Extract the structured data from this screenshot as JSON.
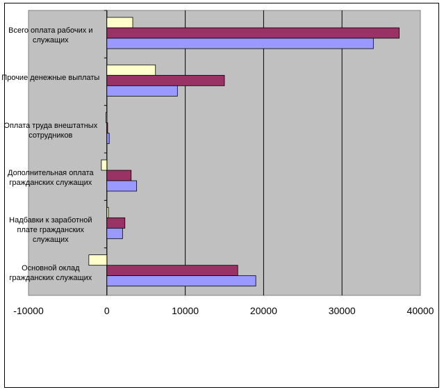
{
  "chart_data": {
    "type": "bar",
    "orientation": "horizontal",
    "categories": [
      "Всего оплата рабочих и служащих",
      "Прочие денежные выплаты",
      "Оплата труда внештатных сотрудников",
      "Дополнительная оплата гражданских служащих",
      "Надбавки к заработной плате гражданских служащих",
      "Основной оклад гражданских служащих"
    ],
    "series": [
      {
        "color": "#FFFFCC",
        "values": [
          3300,
          6200,
          -100,
          -700,
          200,
          -2300
        ]
      },
      {
        "color": "#993366",
        "values": [
          37300,
          15000,
          100,
          3100,
          2300,
          16700
        ]
      },
      {
        "color": "#9999FF",
        "values": [
          34000,
          9000,
          300,
          3800,
          2000,
          19000
        ]
      }
    ],
    "title": "",
    "xlabel": "",
    "ylabel": "",
    "xlim": [
      -10000,
      40000
    ],
    "x_ticks": [
      "-10000",
      "0",
      "10000",
      "20000",
      "30000",
      "40000"
    ],
    "grid": "vertical",
    "legend": "none",
    "plot_background": "#C0C0C0"
  }
}
